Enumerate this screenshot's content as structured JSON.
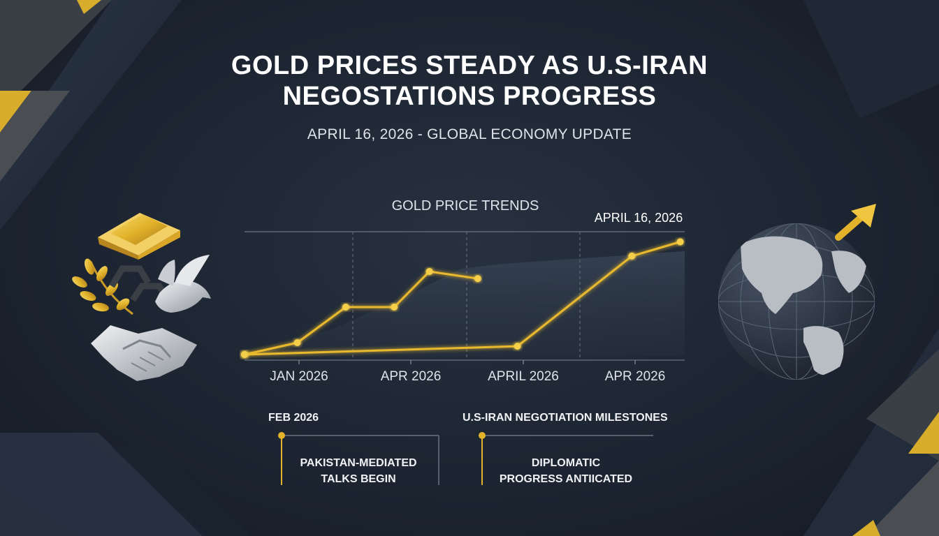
{
  "header": {
    "title_line1": "GOLD PRICES STEADY AS U.S-IRAN",
    "title_line2": "NEGOSTATIONS PROGRESS",
    "subtitle": "APRIL 16, 2026 - GLOBAL ECONOMY UPDATE"
  },
  "colors": {
    "accent_gold": "#e8b92e",
    "background": "#1d2532",
    "text": "#ffffff"
  },
  "chart_data": {
    "type": "line",
    "title": "GOLD PRICE TRENDS",
    "callout_label": "APRIL 16, 2026",
    "x_tick_labels": [
      "JAN 2026",
      "APR 2026",
      "APRIL 2026",
      "APR 2026"
    ],
    "grid": "vertical dashed",
    "series": [
      {
        "points": [
          {
            "x": 0,
            "y": 0
          },
          {
            "x": 12,
            "y": 10
          },
          {
            "x": 23,
            "y": 40
          },
          {
            "x": 34,
            "y": 40
          },
          {
            "x": 42,
            "y": 70
          },
          {
            "x": 53,
            "y": 64
          }
        ]
      },
      {
        "points": [
          {
            "x": 0,
            "y": 0
          },
          {
            "x": 62,
            "y": 7
          },
          {
            "x": 88,
            "y": 83
          },
          {
            "x": 99,
            "y": 95
          }
        ]
      }
    ],
    "xlim": [
      0,
      100
    ],
    "ylim": [
      0,
      100
    ]
  },
  "timeline": {
    "left_date": "FEB 2026",
    "left_event_line1": "PAKISTAN-MEDIATED",
    "left_event_line2": "TALKS BEGIN",
    "right_heading": "U.S-IRAN NEGOTIATION MILESTONES",
    "right_event_line1": "DIPLOMATIC",
    "right_event_line2": "PROGRESS ANTIICATED"
  },
  "icons": [
    "gold-bar-icon",
    "laurel-icon",
    "dove-icon",
    "chain-link-icon",
    "handshake-icon",
    "globe-icon",
    "up-arrow-icon"
  ]
}
